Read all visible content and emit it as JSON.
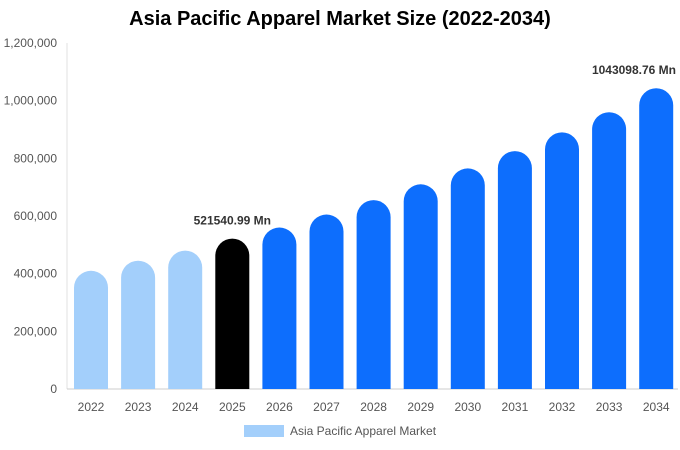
{
  "chart_data": {
    "type": "bar",
    "title": "Asia Pacific Apparel Market Size (2022-2034)",
    "xlabel": "",
    "ylabel": "",
    "ylim": [
      0,
      1200000
    ],
    "yticks": [
      "0",
      "200,000",
      "400,000",
      "600,000",
      "800,000",
      "1,000,000",
      "1,200,000"
    ],
    "ytick_values": [
      0,
      200000,
      400000,
      600000,
      800000,
      1000000,
      1200000
    ],
    "categories": [
      "2022",
      "2023",
      "2024",
      "2025",
      "2026",
      "2027",
      "2028",
      "2029",
      "2030",
      "2031",
      "2032",
      "2033",
      "2034"
    ],
    "series": [
      {
        "name": "Asia Pacific Apparel Market",
        "values": [
          410000,
          445000,
          480000,
          521540.99,
          560000,
          605000,
          655000,
          710000,
          765000,
          825000,
          890000,
          960000,
          1043098.76
        ]
      }
    ],
    "bar_colors": [
      "#a3cffb",
      "#a3cffb",
      "#a3cffb",
      "#000000",
      "#0d6efd",
      "#0d6efd",
      "#0d6efd",
      "#0d6efd",
      "#0d6efd",
      "#0d6efd",
      "#0d6efd",
      "#0d6efd",
      "#0d6efd"
    ],
    "annotations": [
      {
        "index": 3,
        "text": "521540.99 Mn"
      },
      {
        "index": 12,
        "text": "1043098.76 Mn"
      }
    ],
    "legend": {
      "label": "Asia Pacific Apparel Market",
      "color": "#a3cffb",
      "position": "bottom"
    },
    "grid": false
  }
}
